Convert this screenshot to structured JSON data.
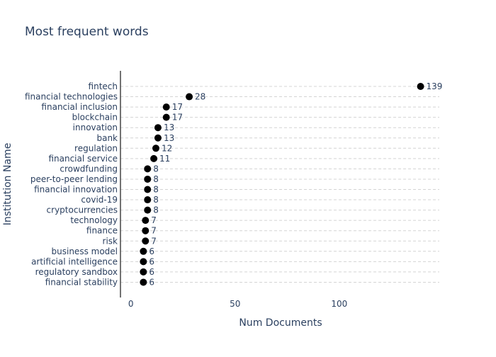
{
  "chart_data": {
    "type": "scatter",
    "title": "Most frequent words",
    "xlabel": "Num Documents",
    "ylabel": "Institution Name",
    "xlim": [
      -5,
      148
    ],
    "x_ticks": [
      0,
      50,
      100
    ],
    "grid": "horizontal dashed",
    "marker_color": "#000000",
    "categories": [
      "fintech",
      "financial technologies",
      "financial inclusion",
      "blockchain",
      "innovation",
      "bank",
      "regulation",
      "financial service",
      "crowdfunding",
      "peer-to-peer lending",
      "financial innovation",
      "covid-19",
      "cryptocurrencies",
      "technology",
      "finance",
      "risk",
      "business model",
      "artificial intelligence",
      "regulatory sandbox",
      "financial stability"
    ],
    "values": [
      139,
      28,
      17,
      17,
      13,
      13,
      12,
      11,
      8,
      8,
      8,
      8,
      8,
      7,
      7,
      7,
      6,
      6,
      6,
      6
    ]
  }
}
